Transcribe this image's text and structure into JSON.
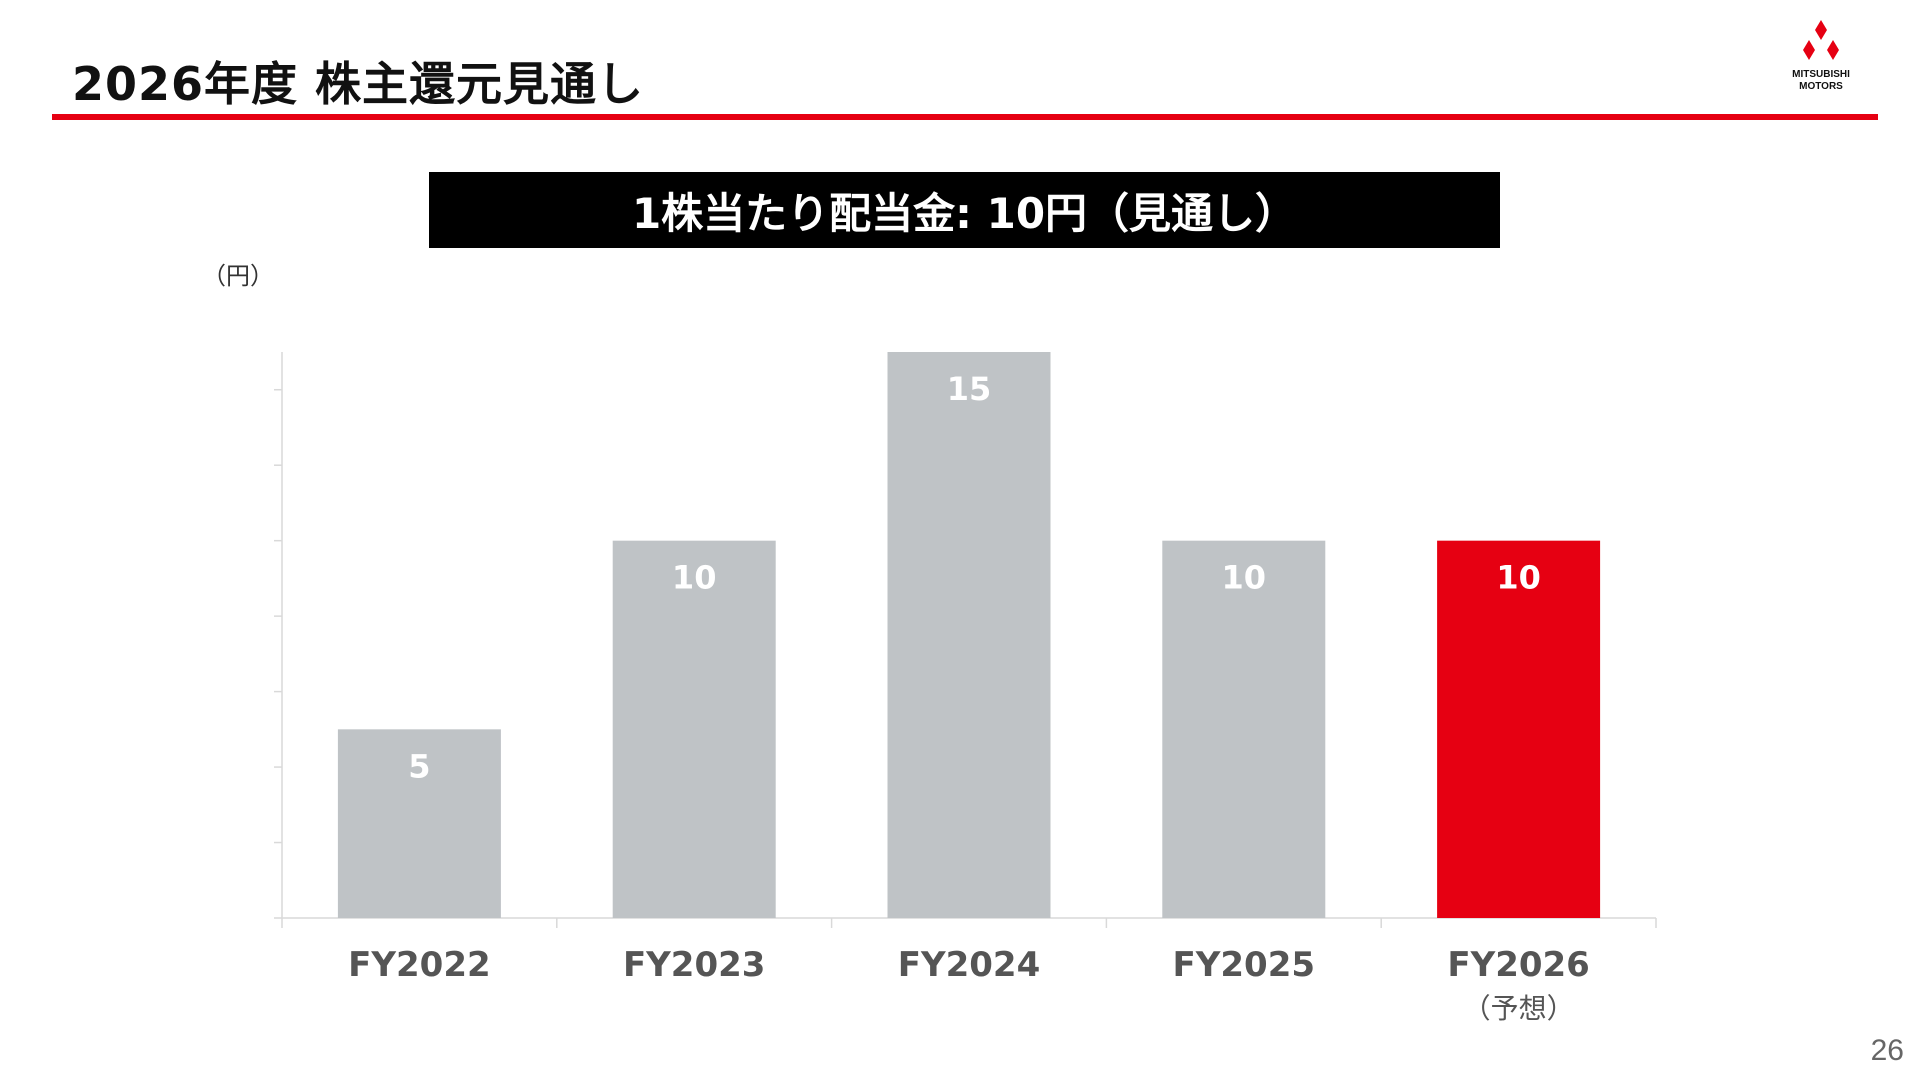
{
  "slide": {
    "title": "2026年度 株主還元見通し",
    "banner": "1株当たり配当金: 10円（見通し）",
    "page_number": "26"
  },
  "logo": {
    "icon": "three-diamonds-logo-icon",
    "line1": "MITSUBISHI",
    "line2": "MOTORS"
  },
  "colors": {
    "accent": "#e60012",
    "bar_gray": "#bfc3c6",
    "bar_forecast": "#e60012",
    "axis": "#d9d9d9",
    "banner_bg": "#000000"
  },
  "chart_data": {
    "type": "bar",
    "title": "",
    "xlabel": "",
    "ylabel": "（円）",
    "categories": [
      "FY2022",
      "FY2023",
      "FY2024",
      "FY2025",
      "FY2026"
    ],
    "category_sublabels": [
      "",
      "",
      "",
      "",
      "（予想）"
    ],
    "series": [
      {
        "values": [
          5,
          10,
          15,
          10,
          10
        ]
      }
    ],
    "highlight_index": 4,
    "data_labels": [
      "5",
      "10",
      "15",
      "10",
      "10"
    ],
    "ylim": [
      0,
      15
    ],
    "y_minor_ticks": [
      0,
      2,
      4,
      6,
      8,
      10,
      12,
      14
    ],
    "y_tick_labels_shown": false,
    "grid": false,
    "legend": "none"
  }
}
